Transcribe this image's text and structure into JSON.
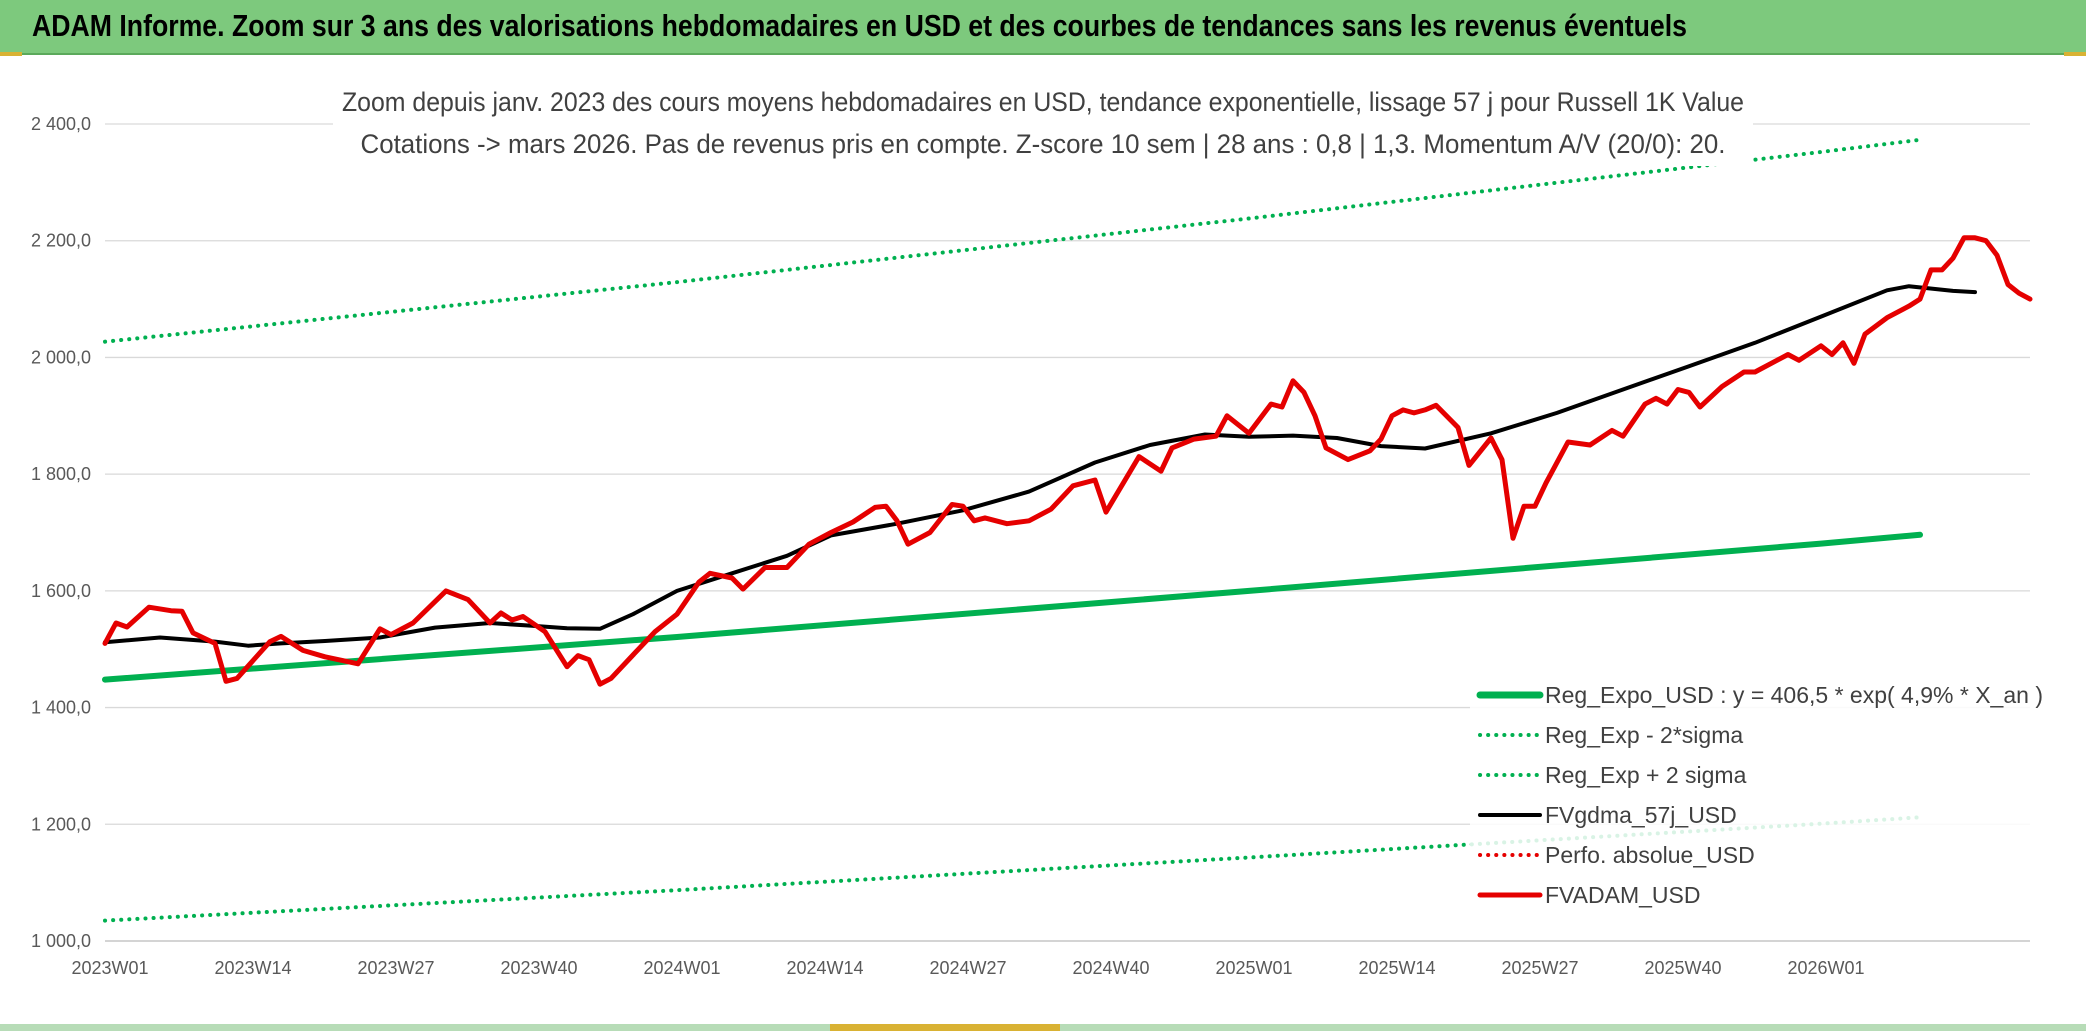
{
  "banner": {
    "title": "ADAM Informe. Zoom sur 3 ans des valorisations hebdomadaires en USD et des courbes de tendances sans les revenus éventuels"
  },
  "colors": {
    "banner_bg": "#7dc97d",
    "reg_expo": "#00b050",
    "fvgdma": "#000000",
    "fvadam": "#e50000",
    "perfo": "#e50000",
    "gridline": "#d9d9d9",
    "accent": "#d9b233"
  },
  "chart_data": {
    "type": "line",
    "subtitle_lines": [
      "Zoom depuis janv. 2023 des cours moyens hebdomadaires en USD, tendance exponentielle, lissage 57 j pour Russell 1K Value",
      "Cotations -> mars 2026. Pas de revenus pris en compte. Z-score 10 sem | 28 ans : 0,8 | 1,3. Momentum A/V (20/0): 20."
    ],
    "x_tick_labels": [
      "2023W01",
      "2023W14",
      "2023W27",
      "2023W40",
      "2024W01",
      "2024W14",
      "2024W27",
      "2024W40",
      "2025W01",
      "2025W14",
      "2025W27",
      "2025W40",
      "2026W01"
    ],
    "y_tick_labels": [
      "1 000,0",
      "1 200,0",
      "1 400,0",
      "1 600,0",
      "1 800,0",
      "2 000,0",
      "2 200,0",
      "2 400,0"
    ],
    "ylim": [
      1000,
      2400
    ],
    "y_tick_values": [
      1000,
      1200,
      1400,
      1600,
      1800,
      2000,
      2200,
      2400
    ],
    "grid": true,
    "legend_position": "bottom-right",
    "series": [
      {
        "name": "Reg_Expo_USD : y = 406,5 * exp( 4,9% *  X_an )",
        "style": "solid-thick",
        "color": "#00b050",
        "anchors": [
          [
            0,
            1448
          ],
          [
            52,
            1521
          ],
          [
            104,
            1600
          ],
          [
            156,
            1681
          ],
          [
            165,
            1696
          ]
        ]
      },
      {
        "name": "Reg_Exp - 2*sigma",
        "style": "dotted",
        "color": "#00b050",
        "anchors": [
          [
            0,
            1035
          ],
          [
            52,
            1087
          ],
          [
            104,
            1143
          ],
          [
            156,
            1201
          ],
          [
            165,
            1212
          ]
        ]
      },
      {
        "name": "Reg_Exp + 2 sigma",
        "style": "dotted",
        "color": "#00b050",
        "anchors": [
          [
            0,
            2027
          ],
          [
            52,
            2129
          ],
          [
            104,
            2238
          ],
          [
            156,
            2352
          ],
          [
            165,
            2373
          ]
        ]
      },
      {
        "name": "FVgdma_57j_USD",
        "style": "solid",
        "color": "#000000",
        "anchors": [
          [
            0,
            1512
          ],
          [
            5,
            1520
          ],
          [
            10,
            1513
          ],
          [
            13,
            1506
          ],
          [
            16,
            1510
          ],
          [
            20,
            1514
          ],
          [
            25,
            1520
          ],
          [
            30,
            1537
          ],
          [
            35,
            1545
          ],
          [
            39,
            1540
          ],
          [
            42,
            1536
          ],
          [
            45,
            1535
          ],
          [
            48,
            1560
          ],
          [
            52,
            1600
          ],
          [
            57,
            1630
          ],
          [
            62,
            1660
          ],
          [
            66,
            1695
          ],
          [
            72,
            1715
          ],
          [
            78,
            1738
          ],
          [
            84,
            1770
          ],
          [
            90,
            1820
          ],
          [
            95,
            1850
          ],
          [
            100,
            1868
          ],
          [
            104,
            1864
          ],
          [
            108,
            1866
          ],
          [
            112,
            1862
          ],
          [
            116,
            1848
          ],
          [
            120,
            1844
          ],
          [
            126,
            1870
          ],
          [
            132,
            1905
          ],
          [
            138,
            1945
          ],
          [
            144,
            1985
          ],
          [
            150,
            2025
          ],
          [
            156,
            2070
          ],
          [
            162,
            2115
          ],
          [
            164,
            2122
          ],
          [
            168,
            2114
          ],
          [
            170,
            2112
          ]
        ]
      },
      {
        "name": "Perfo. absolue_USD",
        "style": "dotted",
        "color": "#e50000",
        "anchors": []
      },
      {
        "name": "FVADAM_USD",
        "style": "solid-thick",
        "color": "#e50000",
        "anchors": [
          [
            0,
            1510
          ],
          [
            1,
            1545
          ],
          [
            2,
            1538
          ],
          [
            4,
            1572
          ],
          [
            6,
            1566
          ],
          [
            7,
            1565
          ],
          [
            8,
            1528
          ],
          [
            10,
            1510
          ],
          [
            11,
            1445
          ],
          [
            12,
            1450
          ],
          [
            15,
            1513
          ],
          [
            16,
            1522
          ],
          [
            18,
            1498
          ],
          [
            20,
            1487
          ],
          [
            23,
            1475
          ],
          [
            25,
            1535
          ],
          [
            26,
            1525
          ],
          [
            28,
            1545
          ],
          [
            31,
            1600
          ],
          [
            33,
            1585
          ],
          [
            35,
            1545
          ],
          [
            36,
            1562
          ],
          [
            37,
            1550
          ],
          [
            38,
            1556
          ],
          [
            40,
            1530
          ],
          [
            42,
            1470
          ],
          [
            43,
            1489
          ],
          [
            44,
            1482
          ],
          [
            45,
            1440
          ],
          [
            46,
            1450
          ],
          [
            48,
            1490
          ],
          [
            50,
            1530
          ],
          [
            52,
            1560
          ],
          [
            54,
            1615
          ],
          [
            55,
            1630
          ],
          [
            57,
            1622
          ],
          [
            58,
            1603
          ],
          [
            60,
            1640
          ],
          [
            62,
            1640
          ],
          [
            64,
            1680
          ],
          [
            66,
            1700
          ],
          [
            68,
            1718
          ],
          [
            70,
            1743
          ],
          [
            71,
            1745
          ],
          [
            72,
            1720
          ],
          [
            73,
            1680
          ],
          [
            75,
            1700
          ],
          [
            77,
            1748
          ],
          [
            78,
            1745
          ],
          [
            79,
            1720
          ],
          [
            80,
            1725
          ],
          [
            82,
            1715
          ],
          [
            84,
            1720
          ],
          [
            86,
            1740
          ],
          [
            88,
            1780
          ],
          [
            90,
            1790
          ],
          [
            91,
            1735
          ],
          [
            94,
            1830
          ],
          [
            96,
            1805
          ],
          [
            97,
            1845
          ],
          [
            99,
            1860
          ],
          [
            101,
            1865
          ],
          [
            102,
            1900
          ],
          [
            104,
            1870
          ],
          [
            106,
            1920
          ],
          [
            107,
            1915
          ],
          [
            108,
            1960
          ],
          [
            109,
            1940
          ],
          [
            110,
            1900
          ],
          [
            111,
            1845
          ],
          [
            113,
            1825
          ],
          [
            115,
            1840
          ],
          [
            116,
            1860
          ],
          [
            117,
            1900
          ],
          [
            118,
            1910
          ],
          [
            119,
            1905
          ],
          [
            120,
            1910
          ],
          [
            121,
            1918
          ],
          [
            123,
            1880
          ],
          [
            124,
            1815
          ],
          [
            126,
            1862
          ],
          [
            127,
            1825
          ],
          [
            128,
            1690
          ],
          [
            129,
            1745
          ],
          [
            130,
            1745
          ],
          [
            131,
            1785
          ],
          [
            133,
            1855
          ],
          [
            135,
            1850
          ],
          [
            137,
            1875
          ],
          [
            138,
            1865
          ],
          [
            140,
            1920
          ],
          [
            141,
            1930
          ],
          [
            142,
            1920
          ],
          [
            143,
            1945
          ],
          [
            144,
            1940
          ],
          [
            145,
            1915
          ],
          [
            147,
            1950
          ],
          [
            149,
            1975
          ],
          [
            150,
            1975
          ],
          [
            152,
            1995
          ],
          [
            153,
            2005
          ],
          [
            154,
            1995
          ],
          [
            156,
            2020
          ],
          [
            157,
            2005
          ],
          [
            158,
            2025
          ],
          [
            159,
            1990
          ],
          [
            160,
            2040
          ],
          [
            162,
            2068
          ],
          [
            164,
            2088
          ],
          [
            165,
            2100
          ],
          [
            166,
            2150
          ],
          [
            167,
            2150
          ],
          [
            168,
            2170
          ],
          [
            169,
            2205
          ],
          [
            170,
            2205
          ],
          [
            171,
            2200
          ],
          [
            172,
            2175
          ],
          [
            173,
            2125
          ],
          [
            174,
            2110
          ],
          [
            175,
            2100
          ]
        ]
      }
    ]
  }
}
